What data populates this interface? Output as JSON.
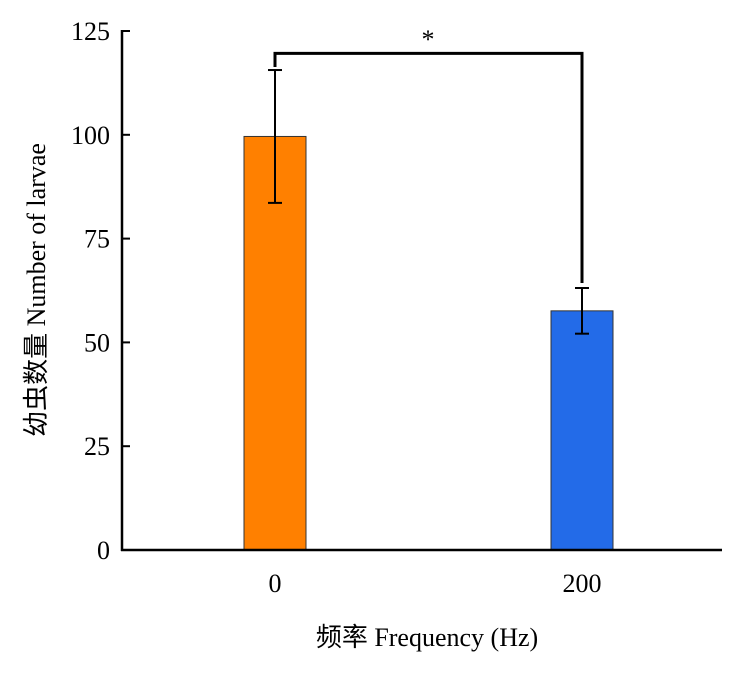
{
  "chart_data": {
    "type": "bar",
    "title": "",
    "xlabel": "频率 Frequency (Hz)",
    "ylabel": "幼虫数量 Number of larvae",
    "categories": [
      "0",
      "200"
    ],
    "values": [
      99.6,
      57.6
    ],
    "error_upper": [
      115.6,
      63.1
    ],
    "error_lower": [
      83.6,
      52.1
    ],
    "colors": [
      "#FF8000",
      "#236BE8"
    ],
    "ylim": [
      0,
      125
    ],
    "yticks": [
      0,
      25,
      50,
      75,
      100,
      125
    ],
    "grid": false,
    "significance": {
      "between": [
        "0",
        "200"
      ],
      "label": "*"
    }
  }
}
